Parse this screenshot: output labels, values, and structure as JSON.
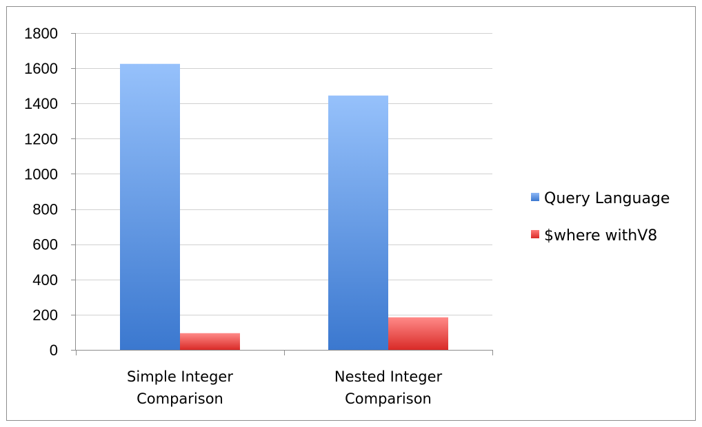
{
  "chart_data": {
    "type": "bar",
    "categories": [
      [
        "Simple Integer",
        "Comparison"
      ],
      [
        "Nested Integer",
        "Comparison"
      ]
    ],
    "series": [
      {
        "name": "Query Language",
        "values": [
          1625,
          1445
        ],
        "color": "#4a8ee0"
      },
      {
        "name": "$where withV8",
        "values": [
          95,
          185
        ],
        "color": "#e8403e"
      }
    ],
    "ylim": [
      0,
      1800
    ],
    "yticks": [
      0,
      200,
      400,
      600,
      800,
      1000,
      1200,
      1400,
      1600,
      1800
    ],
    "grid": true,
    "legend_position": "right"
  }
}
